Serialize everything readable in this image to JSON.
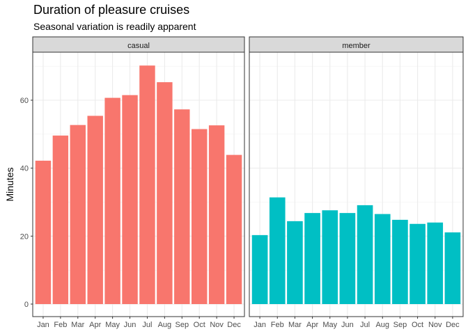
{
  "chart_data": {
    "type": "bar",
    "title": "Duration of pleasure cruises",
    "subtitle": "Seasonal variation is readily apparent",
    "xlabel": "",
    "ylabel": "Minutes",
    "ylim": [
      0,
      74
    ],
    "yticks": [
      0,
      20,
      40,
      60
    ],
    "grid": true,
    "legend": "none",
    "categories": [
      "Jan",
      "Feb",
      "Mar",
      "Apr",
      "May",
      "Jun",
      "Jul",
      "Aug",
      "Sep",
      "Oct",
      "Nov",
      "Dec"
    ],
    "panels": [
      {
        "name": "casual",
        "color": "#F8766D",
        "values": [
          42.2,
          49.6,
          52.7,
          55.4,
          60.7,
          61.5,
          70.2,
          65.3,
          57.3,
          51.5,
          52.6,
          43.9
        ]
      },
      {
        "name": "member",
        "color": "#00BFC4",
        "values": [
          20.3,
          31.4,
          24.4,
          26.8,
          27.6,
          26.8,
          29.1,
          26.5,
          24.8,
          23.6,
          24.0,
          21.1
        ]
      }
    ]
  }
}
